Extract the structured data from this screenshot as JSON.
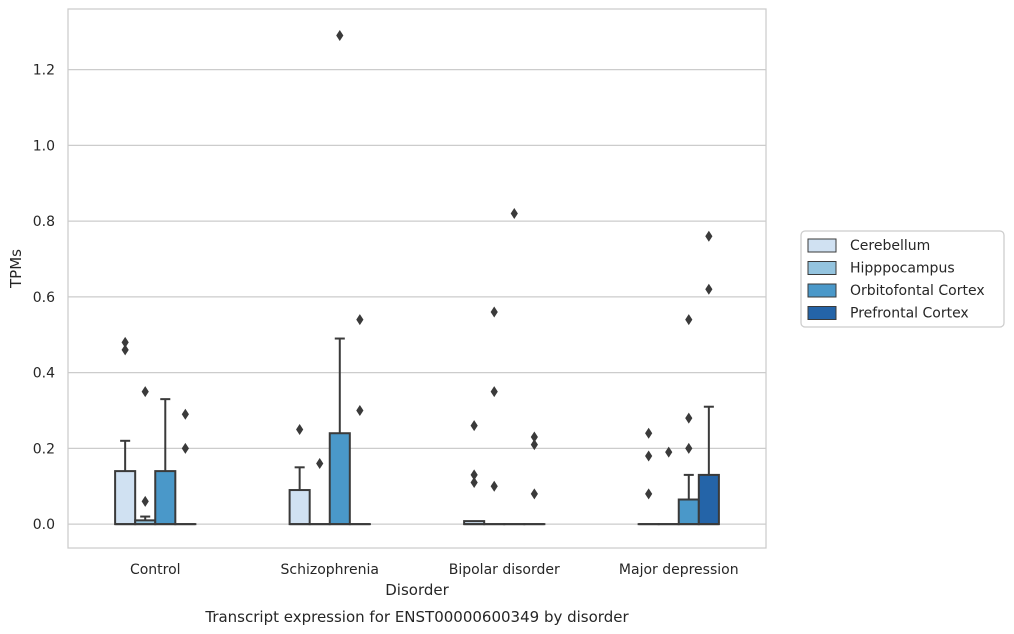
{
  "chart_data": {
    "type": "box",
    "caption": "Transcript expression for ENST00000600349 by disorder",
    "xlabel": "Disorder",
    "ylabel": "TPMs",
    "categories": [
      "Control",
      "Schizophrenia",
      "Bipolar disorder",
      "Major depression"
    ],
    "ylim": [
      -0.063,
      1.36
    ],
    "yticks": [
      0.0,
      0.2,
      0.4,
      0.6,
      0.8,
      1.0,
      1.2
    ],
    "ytick_labels": [
      "0.0",
      "0.2",
      "0.4",
      "0.6",
      "0.8",
      "1.0",
      "1.2"
    ],
    "grid": true,
    "legend_position": "right",
    "series": [
      {
        "name": "Cerebellum",
        "color": "#d0e1f2",
        "boxes": [
          {
            "q1": 0,
            "median": 0,
            "q3": 0.14,
            "whislo": 0,
            "whishi": 0.22,
            "fliers": [
              0.46,
              0.48
            ]
          },
          {
            "q1": 0,
            "median": 0,
            "q3": 0.09,
            "whislo": 0,
            "whishi": 0.15,
            "fliers": [
              0.25
            ]
          },
          {
            "q1": 0,
            "median": 0,
            "q3": 0.008,
            "whislo": 0,
            "whishi": 0.008,
            "fliers": [
              0.11,
              0.13,
              0.26
            ]
          },
          {
            "q1": 0,
            "median": 0,
            "q3": 0,
            "whislo": 0,
            "whishi": 0,
            "fliers": [
              0.08,
              0.18,
              0.24
            ]
          }
        ]
      },
      {
        "name": "Hipppocampus",
        "color": "#94c4df",
        "boxes": [
          {
            "q1": 0,
            "median": 0,
            "q3": 0.01,
            "whislo": 0,
            "whishi": 0.02,
            "fliers": [
              0.06,
              0.35
            ]
          },
          {
            "q1": 0,
            "median": 0,
            "q3": 0,
            "whislo": 0,
            "whishi": 0,
            "fliers": [
              0.16
            ]
          },
          {
            "q1": 0,
            "median": 0,
            "q3": 0,
            "whislo": 0,
            "whishi": 0,
            "fliers": [
              0.1,
              0.35,
              0.56
            ]
          },
          {
            "q1": 0,
            "median": 0,
            "q3": 0,
            "whislo": 0,
            "whishi": 0,
            "fliers": [
              0.19
            ]
          }
        ]
      },
      {
        "name": "Orbitofontal Cortex",
        "color": "#4a98c9",
        "boxes": [
          {
            "q1": 0,
            "median": 0,
            "q3": 0.14,
            "whislo": 0,
            "whishi": 0.33,
            "fliers": []
          },
          {
            "q1": 0,
            "median": 0,
            "q3": 0.24,
            "whislo": 0,
            "whishi": 0.49,
            "fliers": [
              1.29
            ]
          },
          {
            "q1": 0,
            "median": 0,
            "q3": 0,
            "whislo": 0,
            "whishi": 0,
            "fliers": [
              0.82
            ]
          },
          {
            "q1": 0,
            "median": 0,
            "q3": 0.065,
            "whislo": 0,
            "whishi": 0.13,
            "fliers": [
              0.2,
              0.28,
              0.54
            ]
          }
        ]
      },
      {
        "name": "Prefrontal Cortex",
        "color": "#2464a8",
        "boxes": [
          {
            "q1": 0,
            "median": 0,
            "q3": 0,
            "whislo": 0,
            "whishi": 0,
            "fliers": [
              0.2,
              0.29
            ]
          },
          {
            "q1": 0,
            "median": 0,
            "q3": 0,
            "whislo": 0,
            "whishi": 0,
            "fliers": [
              0.3,
              0.54
            ]
          },
          {
            "q1": 0,
            "median": 0,
            "q3": 0,
            "whislo": 0,
            "whishi": 0,
            "fliers": [
              0.08,
              0.21,
              0.23
            ]
          },
          {
            "q1": 0,
            "median": 0,
            "q3": 0.13,
            "whislo": 0,
            "whishi": 0.31,
            "fliers": [
              0.62,
              0.76
            ]
          }
        ]
      }
    ]
  }
}
